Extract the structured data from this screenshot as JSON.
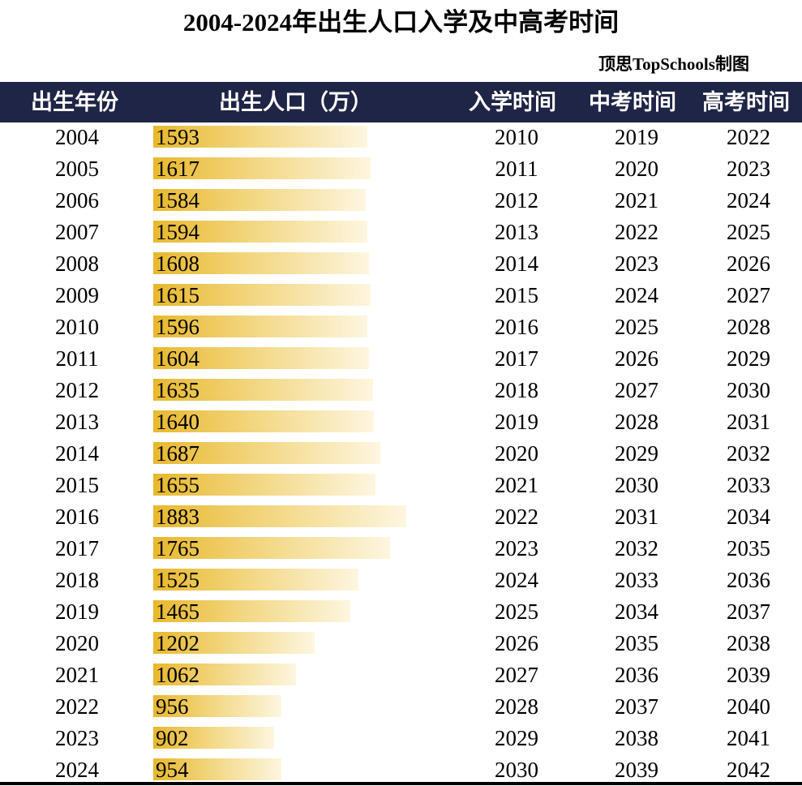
{
  "title": "2004-2024年出生人口入学及中高考时间",
  "credit": "顶思TopSchools制图",
  "header": {
    "birth_year": "出生年份",
    "births": "出生人口（万）",
    "school_entry": "入学时间",
    "zhongkao": "中考时间",
    "gaokao": "高考时间"
  },
  "colors": {
    "header_bg": "#1f2546",
    "bar_start": "#e8b82d",
    "bar_end": "#fdf6e0"
  },
  "chart_data": {
    "type": "table",
    "title": "2004-2024年出生人口入学及中高考时间",
    "columns": [
      "出生年份",
      "出生人口（万）",
      "入学时间",
      "中考时间",
      "高考时间"
    ],
    "bar_column": "出生人口（万）",
    "bar_max": 1883,
    "rows": [
      {
        "year": "2004",
        "births": 1593,
        "entry": "2010",
        "zhongkao": "2019",
        "gaokao": "2022"
      },
      {
        "year": "2005",
        "births": 1617,
        "entry": "2011",
        "zhongkao": "2020",
        "gaokao": "2023"
      },
      {
        "year": "2006",
        "births": 1584,
        "entry": "2012",
        "zhongkao": "2021",
        "gaokao": "2024"
      },
      {
        "year": "2007",
        "births": 1594,
        "entry": "2013",
        "zhongkao": "2022",
        "gaokao": "2025"
      },
      {
        "year": "2008",
        "births": 1608,
        "entry": "2014",
        "zhongkao": "2023",
        "gaokao": "2026"
      },
      {
        "year": "2009",
        "births": 1615,
        "entry": "2015",
        "zhongkao": "2024",
        "gaokao": "2027"
      },
      {
        "year": "2010",
        "births": 1596,
        "entry": "2016",
        "zhongkao": "2025",
        "gaokao": "2028"
      },
      {
        "year": "2011",
        "births": 1604,
        "entry": "2017",
        "zhongkao": "2026",
        "gaokao": "2029"
      },
      {
        "year": "2012",
        "births": 1635,
        "entry": "2018",
        "zhongkao": "2027",
        "gaokao": "2030"
      },
      {
        "year": "2013",
        "births": 1640,
        "entry": "2019",
        "zhongkao": "2028",
        "gaokao": "2031"
      },
      {
        "year": "2014",
        "births": 1687,
        "entry": "2020",
        "zhongkao": "2029",
        "gaokao": "2032"
      },
      {
        "year": "2015",
        "births": 1655,
        "entry": "2021",
        "zhongkao": "2030",
        "gaokao": "2033"
      },
      {
        "year": "2016",
        "births": 1883,
        "entry": "2022",
        "zhongkao": "2031",
        "gaokao": "2034"
      },
      {
        "year": "2017",
        "births": 1765,
        "entry": "2023",
        "zhongkao": "2032",
        "gaokao": "2035"
      },
      {
        "year": "2018",
        "births": 1525,
        "entry": "2024",
        "zhongkao": "2033",
        "gaokao": "2036"
      },
      {
        "year": "2019",
        "births": 1465,
        "entry": "2025",
        "zhongkao": "2034",
        "gaokao": "2037"
      },
      {
        "year": "2020",
        "births": 1202,
        "entry": "2026",
        "zhongkao": "2035",
        "gaokao": "2038"
      },
      {
        "year": "2021",
        "births": 1062,
        "entry": "2027",
        "zhongkao": "2036",
        "gaokao": "2039"
      },
      {
        "year": "2022",
        "births": 956,
        "entry": "2028",
        "zhongkao": "2037",
        "gaokao": "2040"
      },
      {
        "year": "2023",
        "births": 902,
        "entry": "2029",
        "zhongkao": "2038",
        "gaokao": "2041"
      },
      {
        "year": "2024",
        "births": 954,
        "entry": "2030",
        "zhongkao": "2039",
        "gaokao": "2042"
      }
    ]
  }
}
